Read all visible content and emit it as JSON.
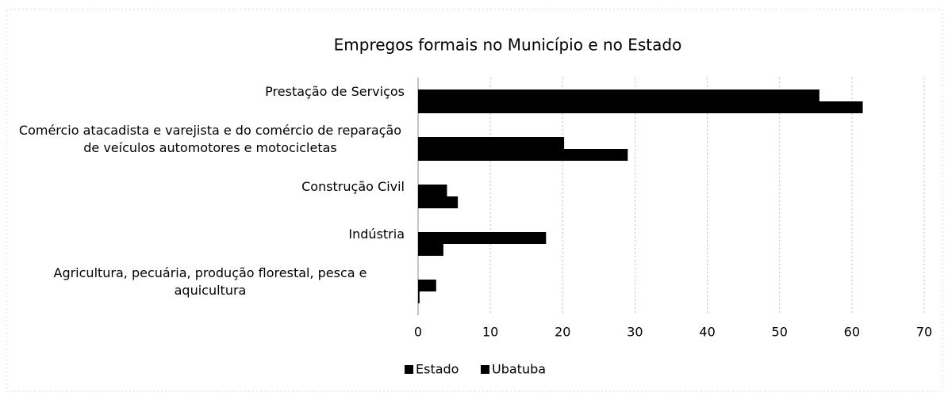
{
  "chart_data": {
    "type": "bar",
    "orientation": "horizontal",
    "title": "Empregos formais no Município e no Estado",
    "categories": [
      "Prestação de Serviços",
      "Comércio atacadista e varejista e do comércio de reparação de veículos automotores e motocicletas",
      "Construção Civil",
      "Indústria",
      "Agricultura, pecuária, produção florestal, pesca e aquicultura"
    ],
    "series": [
      {
        "name": "Estado",
        "color": "#000000",
        "values": [
          55.5,
          20.2,
          4.0,
          17.7,
          2.5
        ]
      },
      {
        "name": "Ubatuba",
        "color": "#000000",
        "values": [
          61.5,
          29.0,
          5.5,
          3.5,
          0.2
        ]
      }
    ],
    "xlim": [
      0,
      70
    ],
    "xticks": [
      0,
      10,
      20,
      30,
      40,
      50,
      60,
      70
    ],
    "grid": true,
    "legend": "bottom"
  }
}
